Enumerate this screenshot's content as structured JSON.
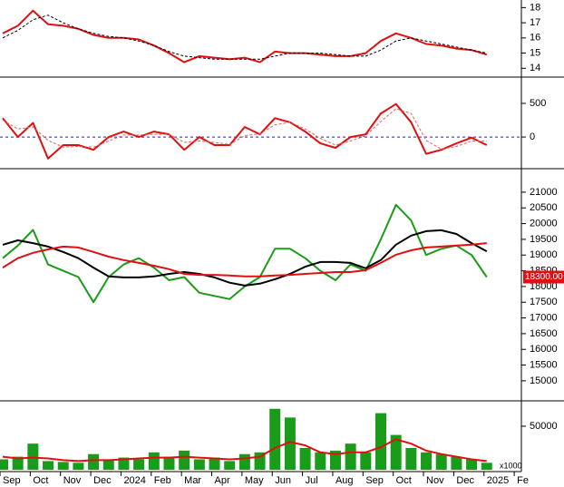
{
  "chart_data": [
    {
      "type": "line",
      "ylim": [
        13.6,
        18.5
      ],
      "yticks": [
        14,
        15,
        16,
        17,
        18
      ],
      "series": [
        {
          "color": "#e01010",
          "style": "solid",
          "values": [
            16.3,
            16.8,
            17.8,
            16.9,
            16.8,
            16.6,
            16.2,
            16.0,
            16.0,
            15.9,
            15.5,
            15.0,
            14.4,
            14.8,
            14.7,
            14.6,
            14.7,
            14.4,
            15.1,
            15.0,
            15.0,
            14.9,
            14.8,
            14.8,
            15.0,
            15.8,
            16.3,
            16.0,
            15.6,
            15.5,
            15.3,
            15.2,
            14.9,
            null,
            null
          ]
        },
        {
          "color": "#000000",
          "style": "dashed",
          "values": [
            16.0,
            16.5,
            17.2,
            17.5,
            17.0,
            16.6,
            16.3,
            16.1,
            16.0,
            15.8,
            15.5,
            15.1,
            14.8,
            14.7,
            14.6,
            14.6,
            14.6,
            14.6,
            14.8,
            15.0,
            15.0,
            15.0,
            14.9,
            14.8,
            14.8,
            15.2,
            15.8,
            16.0,
            15.8,
            15.6,
            15.4,
            15.2,
            15.0,
            null,
            null
          ]
        }
      ]
    },
    {
      "type": "line",
      "ylim": [
        -430,
        850
      ],
      "yticks": [
        0,
        500
      ],
      "ref_line": 0,
      "ref_color": "#2020c0",
      "series": [
        {
          "color": "#e01010",
          "style": "solid",
          "values": [
            280,
            0,
            210,
            -320,
            -120,
            -120,
            -190,
            0,
            80,
            0,
            80,
            40,
            -190,
            0,
            -120,
            -120,
            150,
            40,
            280,
            220,
            80,
            -95,
            -160,
            0,
            40,
            350,
            490,
            220,
            -250,
            -190,
            -95,
            -10,
            -120,
            null,
            null
          ]
        },
        {
          "color": "#e06060",
          "style": "dashed",
          "values": [
            250,
            120,
            150,
            -50,
            -150,
            -140,
            -150,
            -60,
            30,
            30,
            40,
            40,
            -80,
            -60,
            -80,
            -110,
            20,
            50,
            180,
            220,
            120,
            -20,
            -120,
            -60,
            20,
            230,
            420,
            350,
            -50,
            -180,
            -140,
            -60,
            -60,
            null,
            null
          ]
        }
      ]
    },
    {
      "type": "line",
      "ylim": [
        14420,
        21690
      ],
      "yticks": [
        15000,
        15500,
        16000,
        16500,
        17000,
        17500,
        18000,
        18500,
        19000,
        19500,
        20000,
        20500,
        21000
      ],
      "last_price": {
        "value": 18300,
        "label": "18300.00"
      },
      "last_price_color": "#e01010",
      "series": [
        {
          "color": "#1a9b1a",
          "style": "solid",
          "values": [
            18900,
            19300,
            19800,
            18700,
            18500,
            18300,
            17500,
            18300,
            18700,
            18900,
            18600,
            18200,
            18300,
            17800,
            17700,
            17600,
            18000,
            18300,
            19200,
            19200,
            18900,
            18500,
            18200,
            18700,
            18500,
            19500,
            20600,
            20100,
            19000,
            19200,
            19300,
            19000,
            18300,
            null,
            null
          ]
        },
        {
          "color": "#000000",
          "style": "solid",
          "values": [
            19327,
            19470,
            19380,
            19270,
            19100,
            18900,
            18600,
            18320,
            18290,
            18290,
            18320,
            18400,
            18460,
            18400,
            18290,
            18120,
            18030,
            18090,
            18230,
            18400,
            18630,
            18780,
            18780,
            18750,
            18580,
            18840,
            19330,
            19620,
            19760,
            19790,
            19670,
            19380,
            19120,
            null,
            null
          ]
        },
        {
          "color": "#e01010",
          "style": "solid",
          "values": [
            18600,
            18900,
            19070,
            19180,
            19270,
            19240,
            19100,
            18950,
            18840,
            18750,
            18660,
            18550,
            18400,
            18370,
            18370,
            18350,
            18320,
            18320,
            18350,
            18370,
            18400,
            18430,
            18460,
            18460,
            18520,
            18750,
            19010,
            19150,
            19240,
            19270,
            19300,
            19330,
            19380,
            null,
            null
          ]
        }
      ]
    },
    {
      "type": "bar",
      "ylim": [
        0,
        76000
      ],
      "yticks": [
        50000
      ],
      "unit_label": "x1000",
      "categories": [
        "Sep",
        null,
        "Oct",
        null,
        "Nov",
        null,
        "Dec",
        null,
        "2024",
        null,
        "Feb",
        null,
        "Mar",
        null,
        "Apr",
        null,
        "May",
        null,
        "Jun",
        null,
        "Jul",
        null,
        "Aug",
        null,
        "Sep",
        null,
        "Oct",
        null,
        "Nov",
        null,
        "Dec",
        null,
        "2025",
        null,
        "Fe"
      ],
      "series": [
        {
          "color": "#1a9b1a",
          "style": "bar",
          "values": [
            12000,
            15000,
            30000,
            10000,
            9000,
            8000,
            18000,
            12000,
            14000,
            12000,
            20000,
            15000,
            22000,
            12000,
            14000,
            10000,
            18000,
            20000,
            70000,
            60000,
            25000,
            20000,
            22000,
            30000,
            20000,
            65000,
            40000,
            25000,
            20000,
            18000,
            15000,
            12000,
            8000,
            null,
            null
          ]
        },
        {
          "color": "#e01010",
          "style": "solid",
          "values": [
            15000,
            13000,
            14000,
            13000,
            11000,
            10000,
            11000,
            11000,
            12000,
            13000,
            14000,
            14000,
            15000,
            14000,
            13000,
            12000,
            13000,
            15000,
            25000,
            32000,
            28000,
            20000,
            18000,
            20000,
            20000,
            26000,
            35000,
            30000,
            22000,
            18000,
            15000,
            12000,
            10000,
            null,
            null
          ]
        }
      ]
    }
  ]
}
